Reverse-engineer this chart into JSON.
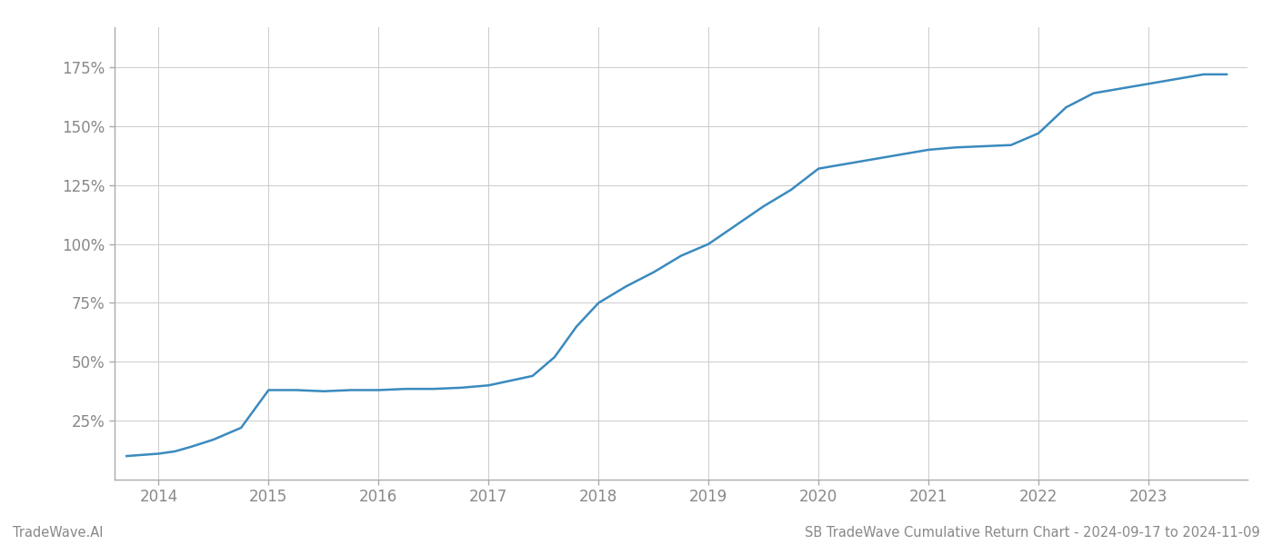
{
  "x_values": [
    2013.71,
    2014.0,
    2014.15,
    2014.3,
    2014.5,
    2014.75,
    2015.0,
    2015.25,
    2015.5,
    2015.75,
    2016.0,
    2016.25,
    2016.5,
    2016.75,
    2017.0,
    2017.2,
    2017.4,
    2017.6,
    2017.8,
    2018.0,
    2018.25,
    2018.5,
    2018.75,
    2019.0,
    2019.25,
    2019.5,
    2019.75,
    2020.0,
    2020.25,
    2020.5,
    2020.75,
    2021.0,
    2021.25,
    2021.5,
    2021.75,
    2022.0,
    2022.25,
    2022.5,
    2022.75,
    2023.0,
    2023.25,
    2023.5,
    2023.71
  ],
  "y_values": [
    10,
    11,
    12,
    14,
    17,
    22,
    38,
    38,
    37.5,
    38,
    38,
    38.5,
    38.5,
    39,
    40,
    42,
    44,
    52,
    65,
    75,
    82,
    88,
    95,
    100,
    108,
    116,
    123,
    132,
    134,
    136,
    138,
    140,
    141,
    141.5,
    142,
    147,
    158,
    164,
    166,
    168,
    170,
    172,
    172
  ],
  "line_color": "#3a8abf",
  "line_width": 1.8,
  "background_color": "#ffffff",
  "grid_color": "#cccccc",
  "grid_linewidth": 0.7,
  "tick_color": "#888888",
  "spine_color": "#aaaaaa",
  "footer_left": "TradeWave.AI",
  "footer_right": "SB TradeWave Cumulative Return Chart - 2024-09-17 to 2024-11-09",
  "footer_fontsize": 10.5,
  "footer_color": "#888888",
  "ytick_labels": [
    "25%",
    "50%",
    "75%",
    "100%",
    "125%",
    "150%",
    "175%"
  ],
  "ytick_values": [
    25,
    50,
    75,
    100,
    125,
    150,
    175
  ],
  "xtick_labels": [
    "2014",
    "2015",
    "2016",
    "2017",
    "2018",
    "2019",
    "2020",
    "2021",
    "2022",
    "2023"
  ],
  "xtick_values": [
    2014,
    2015,
    2016,
    2017,
    2018,
    2019,
    2020,
    2021,
    2022,
    2023
  ],
  "xlim": [
    2013.6,
    2023.9
  ],
  "ylim": [
    0,
    192
  ],
  "tick_fontsize": 12
}
